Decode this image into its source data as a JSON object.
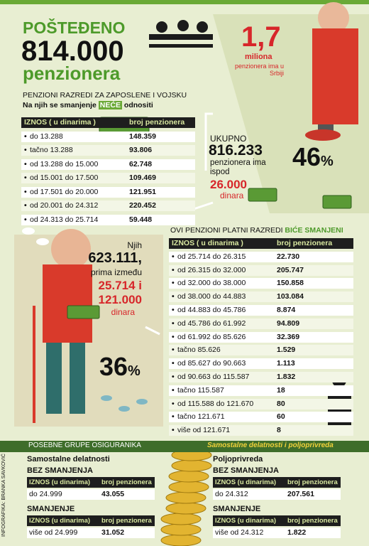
{
  "header": {
    "title": "POŠTEĐENO",
    "number": "814.000",
    "subtitle": "penzionera"
  },
  "stat": {
    "value": "1,7",
    "unit": "miliona",
    "note": "penzionera ima u Srbiji"
  },
  "table1": {
    "title": "PENZIONI RAZREDI ZA ZAPOSLENE I VOJSKU",
    "subtitle": "Na njih se smanjenje",
    "highlight": "NEĆE",
    "subtitle_end": "odnositi",
    "headers": [
      "IZNOS ( u dinarima )",
      "broj penzionera"
    ],
    "rows": [
      [
        "do 13.288",
        "148.359"
      ],
      [
        "tačno 13.288",
        "93.806"
      ],
      [
        "od 13.288 do 15.000",
        "62.748"
      ],
      [
        "od 15.001 do 17.500",
        "109.469"
      ],
      [
        "od 17.501 do 20.000",
        "121.951"
      ],
      [
        "od 20.001 do 24.312",
        "220.452"
      ],
      [
        "od 24.313 do 25.714",
        "59.448"
      ]
    ]
  },
  "callout1": {
    "label": "UKUPNO",
    "number": "816.233",
    "text": "penzionera ima ispod",
    "amount": "26.000",
    "unit": "dinara",
    "percent": "46",
    "percent_sign": "%"
  },
  "callout2": {
    "label": "Njih",
    "number": "623.111,",
    "text": "prima između",
    "from": "25.714 i",
    "to": "121.000",
    "unit": "dinara",
    "percent": "36",
    "percent_sign": "%"
  },
  "table2": {
    "title": "OVI PENZIONI PLATNI RAZREDI",
    "highlight": "BIĆE SMANJENI",
    "headers": [
      "IZNOS ( u dinarima )",
      "broj penzionera"
    ],
    "rows": [
      [
        "od 25.714 do 26.315",
        "22.730"
      ],
      [
        "od 26.315 do 32.000",
        "205.747"
      ],
      [
        "od 32.000 do 38.000",
        "150.858"
      ],
      [
        "od 38.000 do 44.883",
        "103.084"
      ],
      [
        "od 44.883 do 45.786",
        "8.874"
      ],
      [
        "od 45.786 do 61.992",
        "94.809"
      ],
      [
        "od 61.992 do 85.626",
        "32.369"
      ],
      [
        "tačno 85.626",
        "1.529"
      ],
      [
        "od 85.627 do 90.663",
        "1.113"
      ],
      [
        "od 90.663 do 115.587",
        "1.832"
      ],
      [
        "tačno 115.587",
        "18"
      ],
      [
        "od 115.588 do 121.670",
        "80"
      ],
      [
        "tačno 121.671",
        "60"
      ],
      [
        "više od 121.671",
        "8"
      ]
    ]
  },
  "bottom": {
    "title": "POSEBNE GRUPE OSIGURANIKA",
    "subtitle": "Samostalne delatnosti i poljoprivreda",
    "groups": [
      {
        "name": "Samostalne delatnosti",
        "blocks": [
          {
            "label": "BEZ SMANJENJA",
            "headers": [
              "IZNOS (u dinarima)",
              "broj penzionera"
            ],
            "row": [
              "do 24.999",
              "43.055"
            ]
          },
          {
            "label": "SMANJENJE",
            "headers": [
              "IZNOS (u dinarima)",
              "broj penzionera"
            ],
            "row": [
              "više od 24.999",
              "31.052"
            ]
          }
        ]
      },
      {
        "name": "Poljoprivreda",
        "blocks": [
          {
            "label": "BEZ SMANJENJA",
            "headers": [
              "IZNOS (u dinarima)",
              "broj penzionera"
            ],
            "row": [
              "do 24.312",
              "207.561"
            ]
          },
          {
            "label": "SMANJENJE",
            "headers": [
              "IZNOS (u dinarima)",
              "broj penzionera"
            ],
            "row": [
              "više od 24.312",
              "1.822"
            ]
          }
        ]
      }
    ]
  },
  "credit": "INFOGRAFIKA: BRANKA SAVKOVIĆ"
}
